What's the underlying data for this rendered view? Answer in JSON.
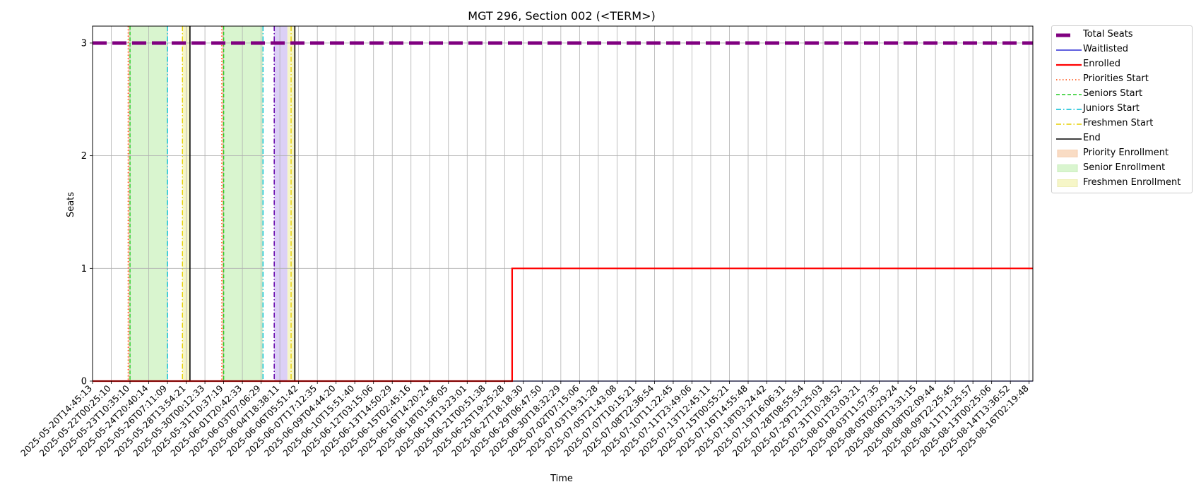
{
  "chart_data": {
    "type": "line",
    "title": "MGT 296, Section 002 (<TERM>)",
    "xlabel": "Time",
    "ylabel": "Seats",
    "ylim": [
      0,
      3.15
    ],
    "yticks": [
      "0",
      "1",
      "2",
      "3"
    ],
    "grid": true,
    "legend_position": "outside-top-right",
    "xticks": [
      "2025-05-20T14:45:13",
      "2025-05-22T00:25:10",
      "2025-05-23T10:35:10",
      "2025-05-24T20:40:14",
      "2025-05-26T07:11:09",
      "2025-05-28T13:54:21",
      "2025-05-30T00:12:33",
      "2025-05-31T10:37:19",
      "2025-06-01T20:42:33",
      "2025-06-03T07:06:29",
      "2025-06-04T18:38:11",
      "2025-06-06T05:51:42",
      "2025-06-07T17:12:35",
      "2025-06-09T04:44:20",
      "2025-06-10T15:51:40",
      "2025-06-12T03:15:06",
      "2025-06-13T14:50:29",
      "2025-06-15T02:45:16",
      "2025-06-16T14:20:24",
      "2025-06-18T01:56:05",
      "2025-06-19T13:23:01",
      "2025-06-21T00:51:38",
      "2025-06-25T19:25:28",
      "2025-06-27T18:18:30",
      "2025-06-29T06:47:50",
      "2025-06-30T18:32:29",
      "2025-07-02T07:15:06",
      "2025-07-03T19:31:28",
      "2025-07-05T21:43:08",
      "2025-07-07T10:15:21",
      "2025-07-08T22:36:54",
      "2025-07-10T11:22:45",
      "2025-07-11T23:49:06",
      "2025-07-13T12:45:11",
      "2025-07-15T00:55:21",
      "2025-07-16T14:55:48",
      "2025-07-18T03:24:42",
      "2025-07-19T16:06:31",
      "2025-07-28T08:55:54",
      "2025-07-29T21:25:03",
      "2025-07-31T10:28:52",
      "2025-08-01T23:03:21",
      "2025-08-03T11:57:35",
      "2025-08-05T00:29:24",
      "2025-08-06T13:31:15",
      "2025-08-08T02:09:44",
      "2025-08-09T22:25:45",
      "2025-08-11T11:25:57",
      "2025-08-13T00:25:06",
      "2025-08-14T13:36:52",
      "2025-08-16T02:19:48"
    ],
    "series": [
      {
        "name": "Total Seats",
        "color": "#800080",
        "style": "dashed-thick",
        "x_index_range": [
          0,
          50.2
        ],
        "values": [
          3,
          3
        ]
      },
      {
        "name": "Waitlisted",
        "color": "#0000cc",
        "style": "solid-thin",
        "x_index_range": [
          0,
          50.2
        ],
        "values": [
          0,
          0
        ]
      },
      {
        "name": "Enrolled",
        "color": "#ff0000",
        "style": "solid",
        "step_points": [
          [
            0,
            0
          ],
          [
            22.4,
            0
          ],
          [
            22.4,
            1
          ],
          [
            50.2,
            1
          ]
        ]
      }
    ],
    "markers": [
      {
        "name": "Priorities Start",
        "color": "#ff4500",
        "style": "dotted",
        "x_index": [
          1.9,
          6.9
        ]
      },
      {
        "name": "Seniors Start",
        "color": "#22cc22",
        "style": "dashed",
        "x_index": [
          2.0,
          7.0
        ]
      },
      {
        "name": "Juniors Start",
        "color": "#00bcd4",
        "style": "dashdot",
        "x_index": [
          4.0,
          9.1
        ]
      },
      {
        "name": "Freshmen Start",
        "color": "#e6cf00",
        "style": "dashdot",
        "x_index": [
          4.8,
          10.6
        ]
      },
      {
        "name": "End",
        "color": "#000000",
        "style": "solid",
        "x_index": [
          5.2,
          10.8
        ]
      }
    ],
    "regions": [
      {
        "name": "Priority Enrollment",
        "color": "#f9dcc4",
        "spans": [
          [
            1.9,
            2.0
          ],
          [
            6.9,
            7.0
          ]
        ]
      },
      {
        "name": "Senior Enrollment",
        "color": "#d9f5cf",
        "spans": [
          [
            2.0,
            4.0
          ],
          [
            7.0,
            9.1
          ]
        ]
      },
      {
        "name": "Freshmen Enrollment",
        "color": "#f6f6c8",
        "spans": [
          [
            4.8,
            5.2
          ],
          [
            10.4,
            10.8
          ]
        ]
      },
      {
        "name": "",
        "color": "#dcd0f6",
        "spans": [
          [
            9.7,
            10.4
          ]
        ]
      }
    ],
    "extra_lines": [
      {
        "color": "#6a0dad",
        "style": "dashdot",
        "x_index": 9.7
      }
    ]
  }
}
